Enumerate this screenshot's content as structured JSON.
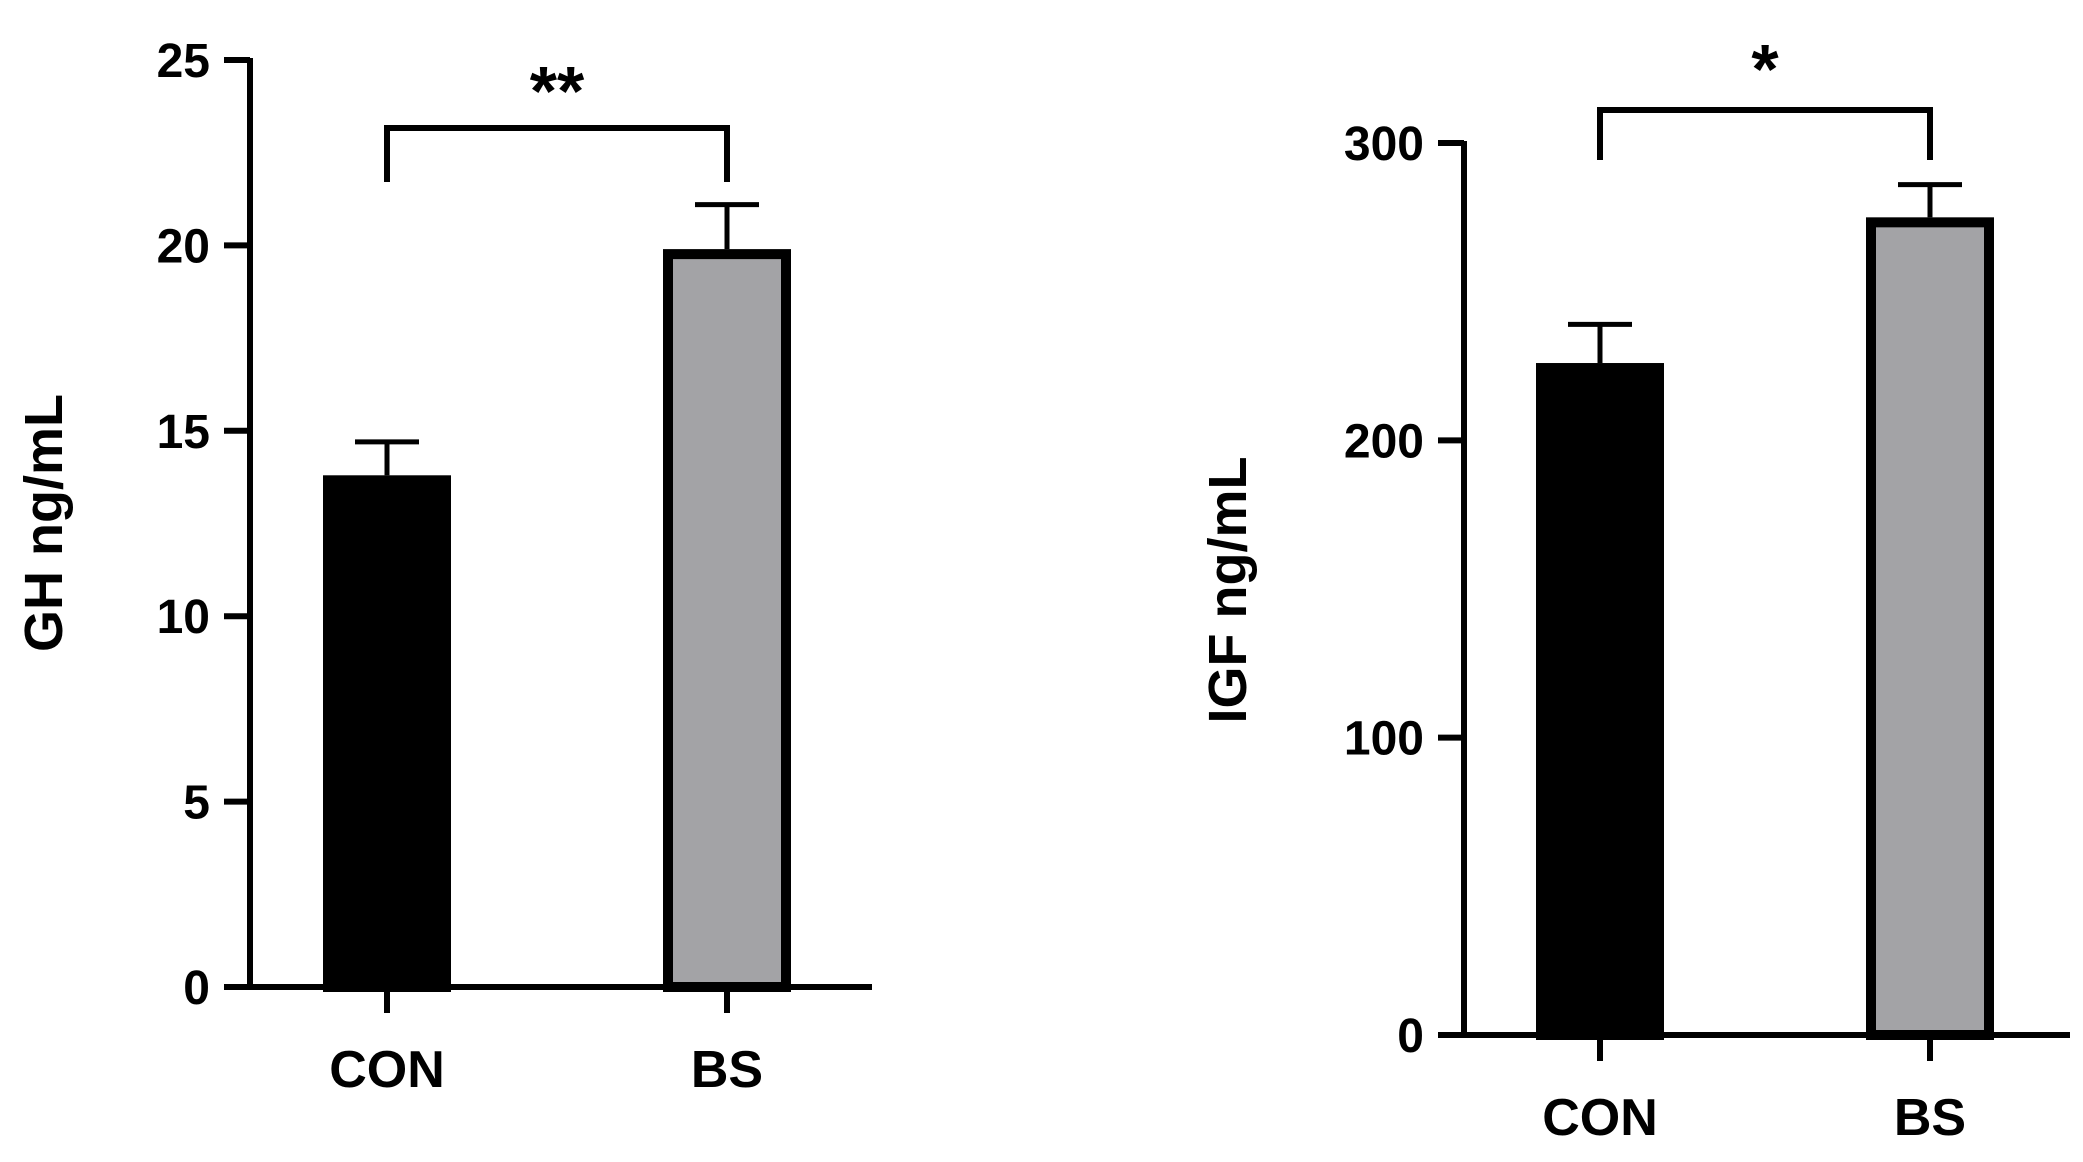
{
  "chart_data": [
    {
      "type": "bar",
      "categories": [
        "CON",
        "BS"
      ],
      "values": [
        13.8,
        19.9
      ],
      "errors": [
        0.9,
        1.2
      ],
      "ylabel": "GH ng/mL",
      "ylim": [
        0,
        25
      ],
      "yticks": [
        0,
        5,
        10,
        15,
        20,
        25
      ],
      "ytick_labels": [
        "0",
        "5",
        "10",
        "15",
        "20",
        "25"
      ],
      "bar_colors": [
        "#000000",
        "#a3a3a6"
      ],
      "significance": {
        "from": "CON",
        "to": "BS",
        "label": "**"
      }
    },
    {
      "type": "bar",
      "categories": [
        "CON",
        "BS"
      ],
      "values": [
        226,
        275
      ],
      "errors": [
        13,
        11
      ],
      "ylabel": "IGF ng/mL",
      "ylim": [
        0,
        300
      ],
      "yticks": [
        0,
        100,
        200,
        300
      ],
      "ytick_labels": [
        "0",
        "100",
        "200",
        "300"
      ],
      "bar_colors": [
        "#000000",
        "#a3a3a6"
      ],
      "significance": {
        "from": "CON",
        "to": "BS",
        "label": "*"
      }
    }
  ]
}
